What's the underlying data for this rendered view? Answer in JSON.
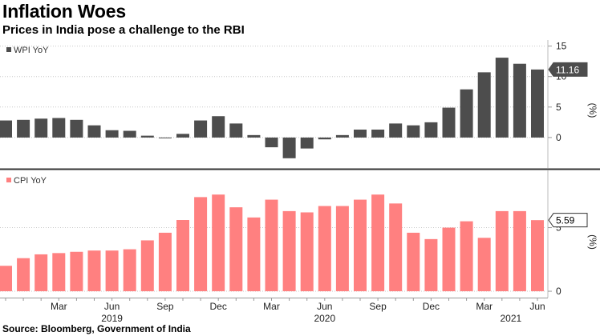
{
  "title": "Inflation Woes",
  "subtitle": "Prices in India pose a challenge to the RBI",
  "source": "Source: Bloomberg, Government of India",
  "chart_data": [
    {
      "type": "bar",
      "name": "WPI YoY",
      "unit": "(%)",
      "color": "#4d4d4d",
      "ylim": [
        -5,
        16
      ],
      "yticks": [
        0,
        5,
        10,
        15
      ],
      "grid": true,
      "legend": "top-left",
      "last_value_label": "11.16",
      "values": [
        2.8,
        2.9,
        3.1,
        3.2,
        2.9,
        2.0,
        1.2,
        1.1,
        0.3,
        -0.1,
        0.6,
        2.8,
        3.5,
        2.3,
        0.4,
        -1.6,
        -3.4,
        -1.8,
        -0.3,
        0.4,
        1.3,
        1.3,
        2.3,
        2.0,
        2.5,
        4.9,
        7.9,
        10.7,
        13.1,
        12.1,
        11.16
      ],
      "categories": [
        "2018-12",
        "2019-01",
        "2019-02",
        "2019-03",
        "2019-04",
        "2019-05",
        "2019-06",
        "2019-07",
        "2019-08",
        "2019-09",
        "2019-10",
        "2019-11",
        "2019-12",
        "2020-01",
        "2020-02",
        "2020-03",
        "2020-04",
        "2020-05",
        "2020-06",
        "2020-07",
        "2020-08",
        "2020-09",
        "2020-10",
        "2020-11",
        "2020-12",
        "2021-01",
        "2021-02",
        "2021-03",
        "2021-04",
        "2021-05",
        "2021-06"
      ]
    },
    {
      "type": "bar",
      "name": "CPI YoY",
      "unit": "(%)",
      "color": "#ff8080",
      "ylim": [
        -0.5,
        9.5
      ],
      "yticks": [
        0,
        5
      ],
      "grid": true,
      "legend": "top-left",
      "last_value_label": "5.59",
      "values": [
        2.0,
        2.6,
        2.9,
        3.0,
        3.1,
        3.2,
        3.2,
        3.3,
        4.0,
        4.6,
        5.6,
        7.4,
        7.6,
        6.6,
        5.8,
        7.2,
        6.3,
        6.2,
        6.7,
        6.7,
        7.2,
        7.6,
        6.9,
        4.6,
        4.1,
        5.0,
        5.5,
        4.2,
        6.3,
        6.3,
        5.59
      ],
      "categories": [
        "2018-12",
        "2019-01",
        "2019-02",
        "2019-03",
        "2019-04",
        "2019-05",
        "2019-06",
        "2019-07",
        "2019-08",
        "2019-09",
        "2019-10",
        "2019-11",
        "2019-12",
        "2020-01",
        "2020-02",
        "2020-03",
        "2020-04",
        "2020-05",
        "2020-06",
        "2020-07",
        "2020-08",
        "2020-09",
        "2020-10",
        "2020-11",
        "2020-12",
        "2021-01",
        "2021-02",
        "2021-03",
        "2021-04",
        "2021-05",
        "2021-06"
      ]
    }
  ],
  "x_axis": {
    "month_labels": [
      {
        "label": "Mar",
        "index": 3
      },
      {
        "label": "Jun",
        "index": 6
      },
      {
        "label": "Sep",
        "index": 9
      },
      {
        "label": "Dec",
        "index": 12
      },
      {
        "label": "Mar",
        "index": 15
      },
      {
        "label": "Jun",
        "index": 18
      },
      {
        "label": "Sep",
        "index": 21
      },
      {
        "label": "Dec",
        "index": 24
      },
      {
        "label": "Mar",
        "index": 27
      },
      {
        "label": "Jun",
        "index": 30
      }
    ],
    "year_labels": [
      {
        "label": "2019",
        "index": 6
      },
      {
        "label": "2020",
        "index": 18
      },
      {
        "label": "2021",
        "index": 28.5
      }
    ]
  }
}
